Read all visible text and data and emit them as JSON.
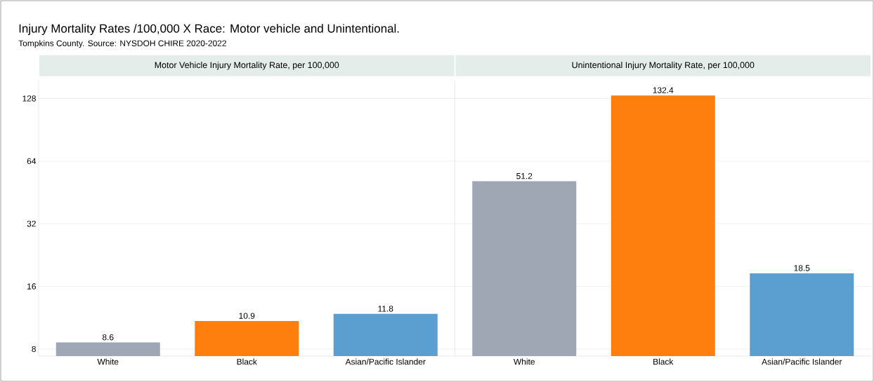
{
  "chart_data": [
    {
      "type": "other",
      "title": "Injury Mortality Rates /100,000 X Race: Motor vehicle and Unintentional.",
      "subtitle": "Tompkins County. Source: NYSDOH CHIRE 2020-2022"
    },
    {
      "type": "bar",
      "title": "Motor Vehicle Injury Mortality Rate, per 100,000",
      "categories": [
        "White",
        "Black",
        "Asian/Pacific Islander"
      ],
      "values": [
        8.6,
        10.9,
        11.8
      ],
      "colors": [
        "#a0a7b4",
        "#ff7f0e",
        "#5b9fd0"
      ],
      "log": true,
      "ylim": [
        7.4,
        156
      ],
      "yticks": [
        8,
        16,
        32,
        64,
        128
      ],
      "grid": "y",
      "data_labels": true
    },
    {
      "type": "bar",
      "title": "Unintentional Injury Mortality Rate, per 100,000",
      "categories": [
        "White",
        "Black",
        "Asian/Pacific Islander"
      ],
      "values": [
        51.2,
        132.4,
        18.5
      ],
      "colors": [
        "#a0a7b4",
        "#ff7f0e",
        "#5b9fd0"
      ],
      "log": true,
      "ylim": [
        7.4,
        156
      ],
      "yticks": [
        8,
        16,
        32,
        64,
        128
      ],
      "grid": "y",
      "data_labels": true,
      "tick_labels": "x"
    }
  ]
}
